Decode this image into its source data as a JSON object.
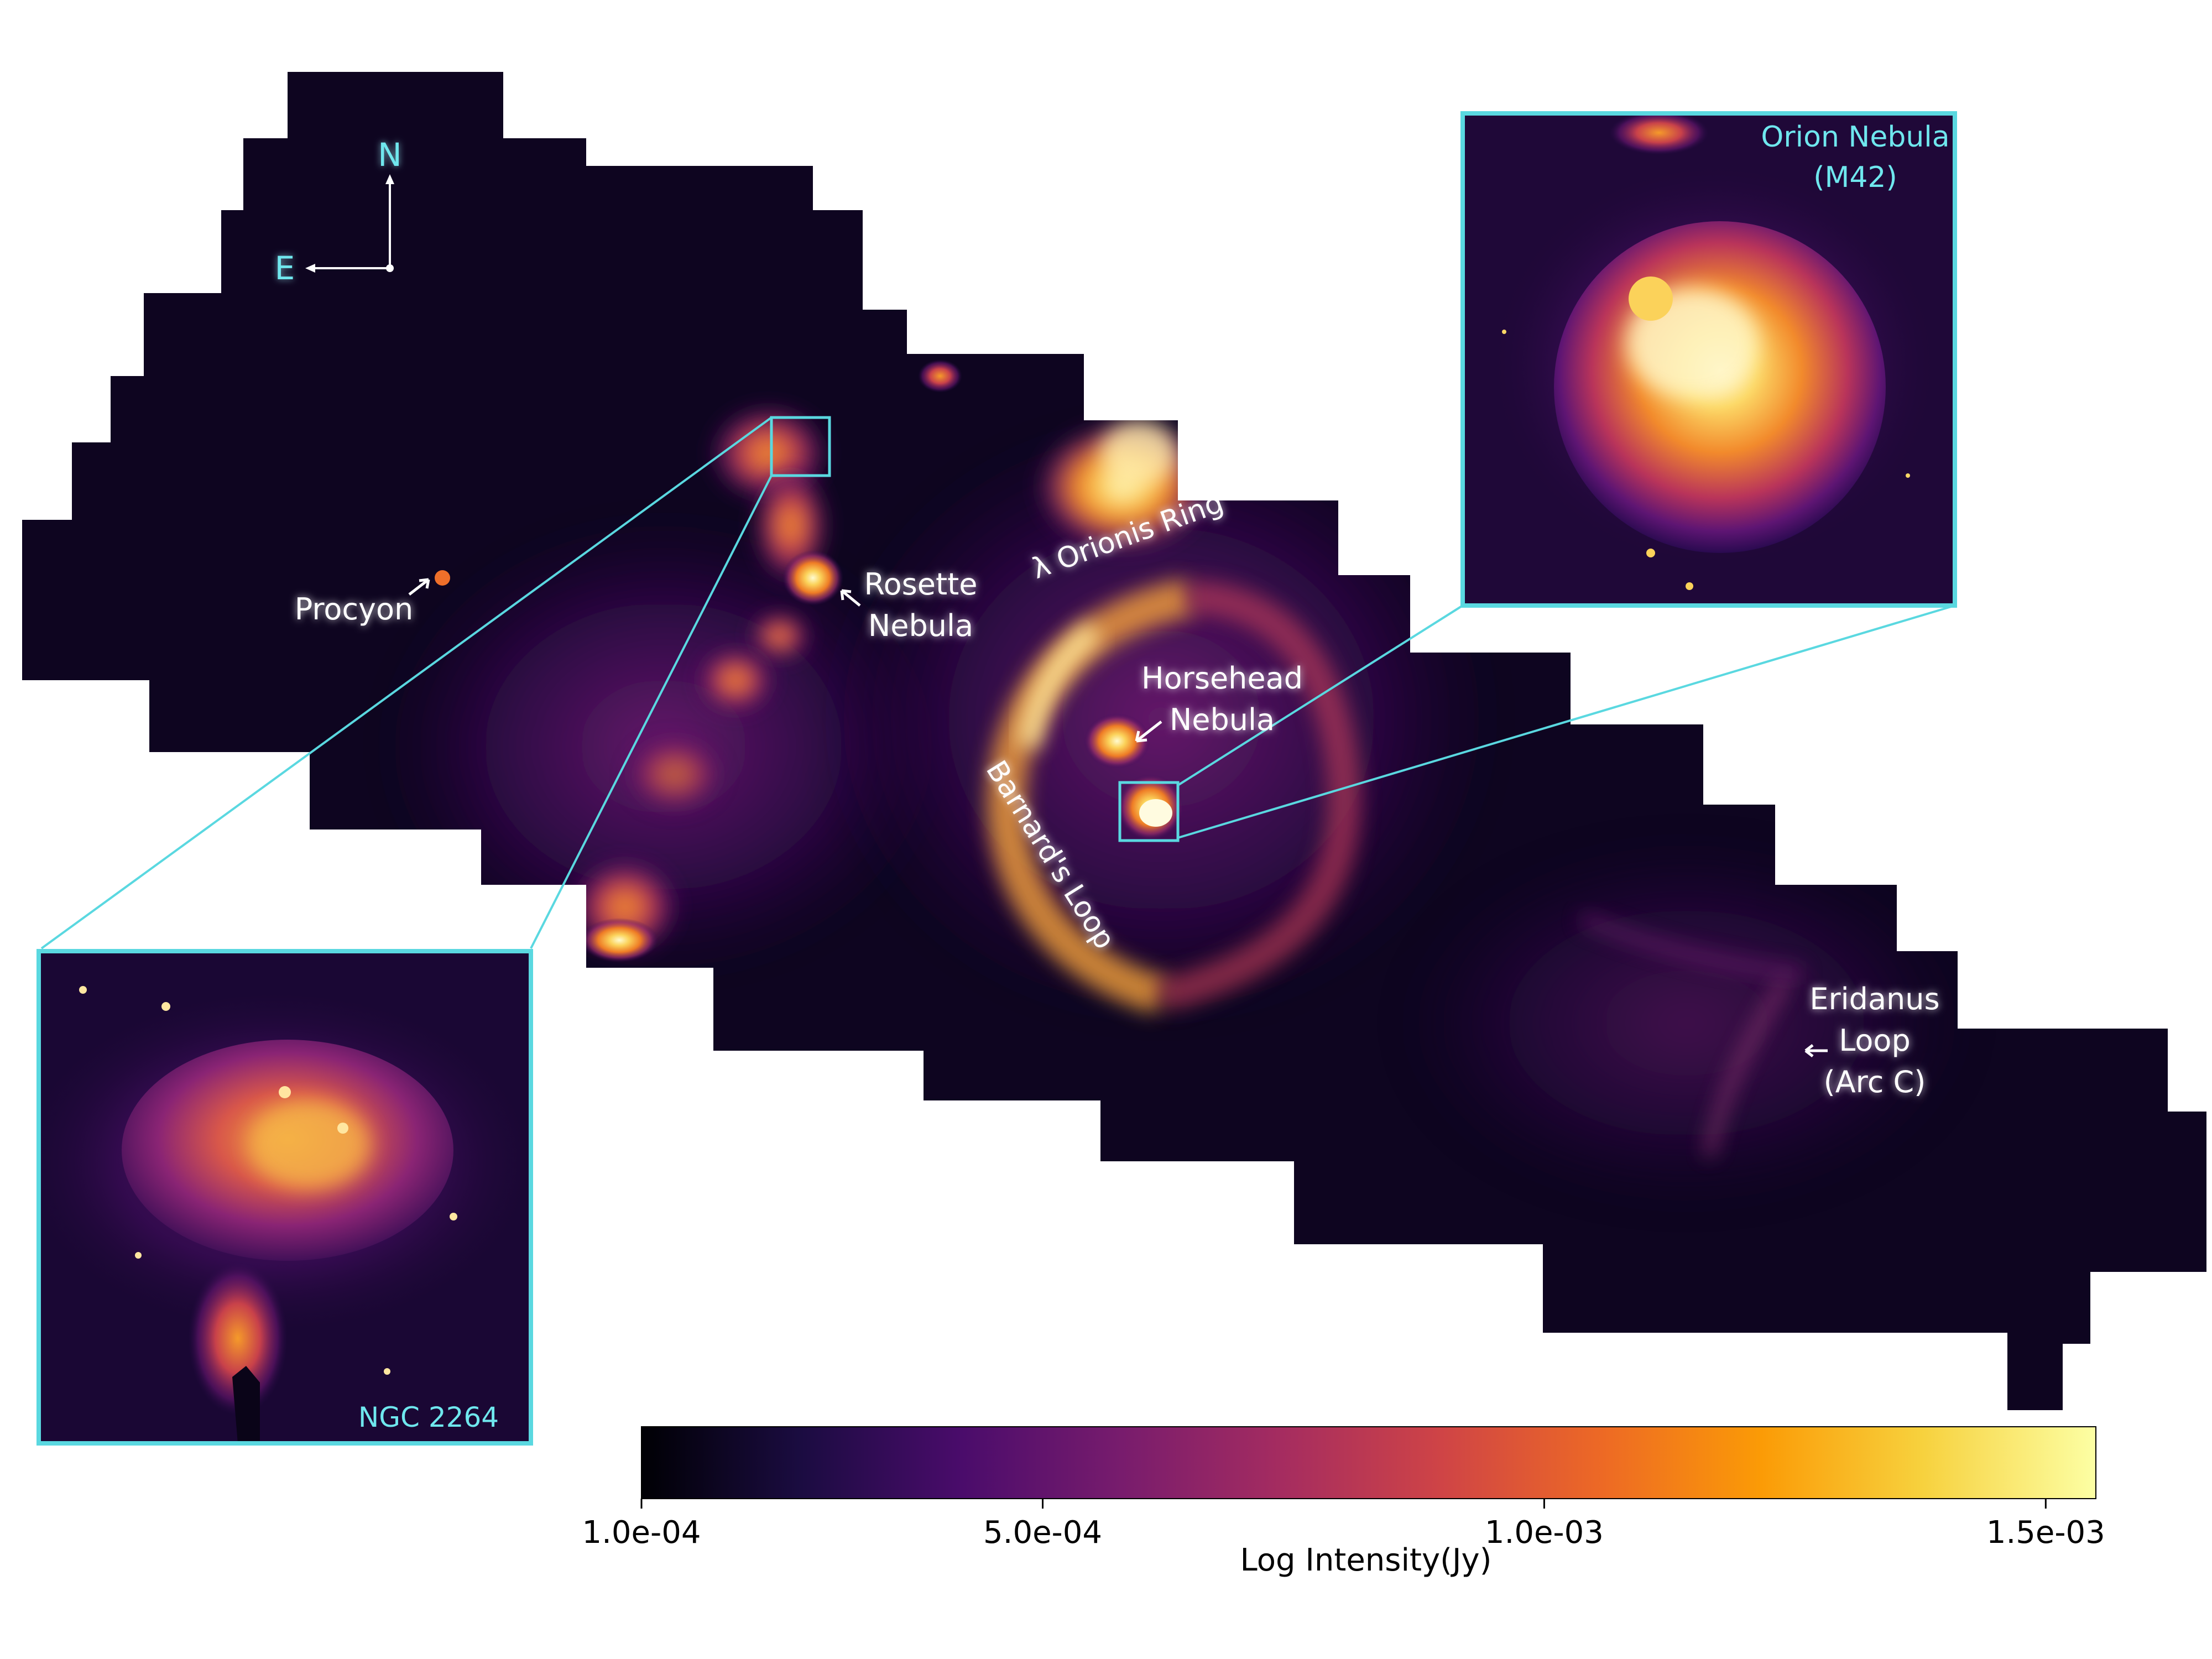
{
  "labels": {
    "procyon": "Procyon",
    "rosette_1": "Rosette",
    "rosette_2": "Nebula",
    "lambda_orionis": "λ Orionis Ring",
    "horsehead_1": "Horsehead",
    "horsehead_2": "Nebula",
    "barnards_loop": "Barnard's Loop",
    "eridanus_1": "Eridanus",
    "eridanus_2": "Loop",
    "eridanus_3": "(Arc C)"
  },
  "compass": {
    "north": "N",
    "east": "E"
  },
  "insets": {
    "orion": {
      "title_1": "Orion Nebula",
      "title_2": "(M42)"
    },
    "ngc2264": {
      "title": "NGC 2264"
    }
  },
  "colorbar": {
    "label": "Log Intensity(Jy)",
    "colormap": "inferno",
    "ticks": [
      {
        "value": 0.0001,
        "label": "1.0e-04"
      },
      {
        "value": 0.0005,
        "label": "5.0e-04"
      },
      {
        "value": 0.001,
        "label": "1.0e-03"
      },
      {
        "value": 0.0015,
        "label": "1.5e-03"
      }
    ]
  },
  "colors": {
    "accent_cyan": "#5ad8e0",
    "label_white": "#ffffff",
    "inferno_stops": [
      "#000004",
      "#1b0c41",
      "#4a0c6b",
      "#781c6d",
      "#a52c60",
      "#cf4446",
      "#ed6925",
      "#fb9b06",
      "#f7d13d",
      "#fcffa4"
    ]
  }
}
